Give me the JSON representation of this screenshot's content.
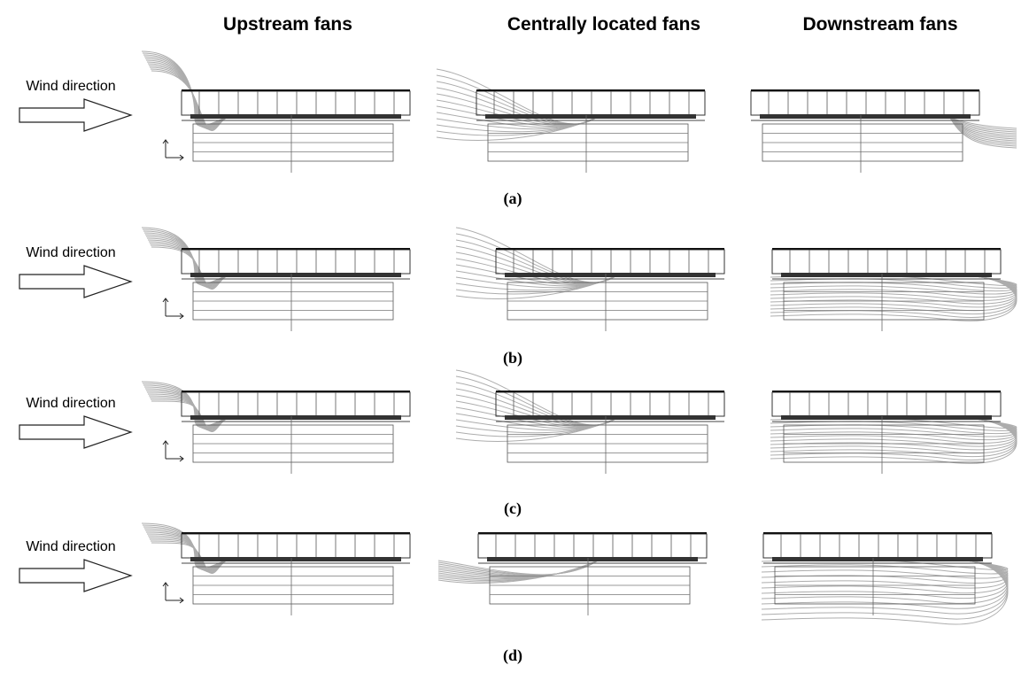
{
  "headers": [
    "Upstream fans",
    "Centrally located fans",
    "Downstream fans"
  ],
  "rows": [
    {
      "wind_label": "Wind direction",
      "caption": "(a)"
    },
    {
      "wind_label": "Wind direction",
      "caption": "(b)"
    },
    {
      "wind_label": "Wind direction",
      "caption": "(c)"
    },
    {
      "wind_label": "Wind direction",
      "caption": "(d)"
    }
  ]
}
